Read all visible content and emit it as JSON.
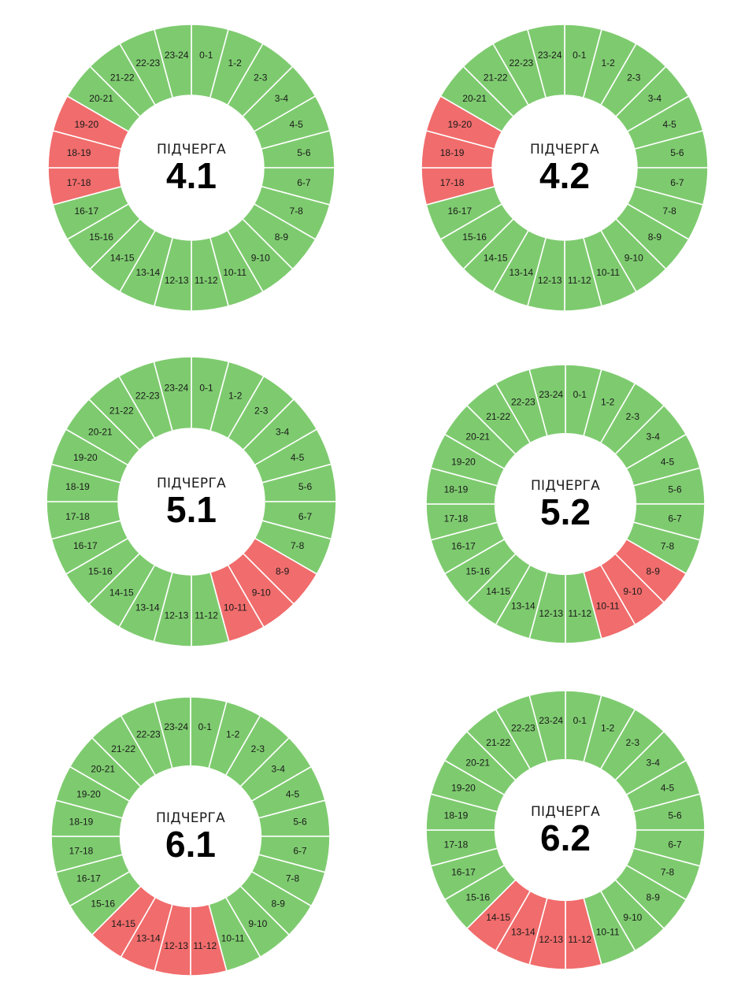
{
  "palette": {
    "on": "#7ecb6f",
    "off": "#f16c6c",
    "separator": "#ffffff"
  },
  "chart_data": [
    {
      "type": "pie",
      "title": "ПІДЧЕРГА",
      "value": "4.1",
      "slots": [
        "0-1",
        "1-2",
        "2-3",
        "3-4",
        "4-5",
        "5-6",
        "6-7",
        "7-8",
        "8-9",
        "9-10",
        "10-11",
        "11-12",
        "12-13",
        "13-14",
        "14-15",
        "15-16",
        "16-17",
        "17-18",
        "18-19",
        "19-20",
        "20-21",
        "21-22",
        "22-23",
        "23-24"
      ],
      "off_slots": [
        "17-18",
        "18-19",
        "19-20"
      ]
    },
    {
      "type": "pie",
      "title": "ПІДЧЕРГА",
      "value": "4.2",
      "slots": [
        "0-1",
        "1-2",
        "2-3",
        "3-4",
        "4-5",
        "5-6",
        "6-7",
        "7-8",
        "8-9",
        "9-10",
        "10-11",
        "11-12",
        "12-13",
        "13-14",
        "14-15",
        "15-16",
        "16-17",
        "17-18",
        "18-19",
        "19-20",
        "20-21",
        "21-22",
        "22-23",
        "23-24"
      ],
      "off_slots": [
        "17-18",
        "18-19",
        "19-20"
      ]
    },
    {
      "type": "pie",
      "title": "ПІДЧЕРГА",
      "value": "5.1",
      "slots": [
        "0-1",
        "1-2",
        "2-3",
        "3-4",
        "4-5",
        "5-6",
        "6-7",
        "7-8",
        "8-9",
        "9-10",
        "10-11",
        "11-12",
        "12-13",
        "13-14",
        "14-15",
        "15-16",
        "16-17",
        "17-18",
        "18-19",
        "19-20",
        "20-21",
        "21-22",
        "22-23",
        "23-24"
      ],
      "off_slots": [
        "8-9",
        "9-10",
        "10-11"
      ]
    },
    {
      "type": "pie",
      "title": "ПІДЧЕРГА",
      "value": "5.2",
      "slots": [
        "0-1",
        "1-2",
        "2-3",
        "3-4",
        "4-5",
        "5-6",
        "6-7",
        "7-8",
        "8-9",
        "9-10",
        "10-11",
        "11-12",
        "12-13",
        "13-14",
        "14-15",
        "15-16",
        "16-17",
        "17-18",
        "18-19",
        "19-20",
        "20-21",
        "21-22",
        "22-23",
        "23-24"
      ],
      "off_slots": [
        "8-9",
        "9-10",
        "10-11"
      ]
    },
    {
      "type": "pie",
      "title": "ПІДЧЕРГА",
      "value": "6.1",
      "slots": [
        "0-1",
        "1-2",
        "2-3",
        "3-4",
        "4-5",
        "5-6",
        "6-7",
        "7-8",
        "8-9",
        "9-10",
        "10-11",
        "11-12",
        "12-13",
        "13-14",
        "14-15",
        "15-16",
        "16-17",
        "17-18",
        "18-19",
        "19-20",
        "20-21",
        "21-22",
        "22-23",
        "23-24"
      ],
      "off_slots": [
        "11-12",
        "12-13",
        "13-14",
        "14-15"
      ]
    },
    {
      "type": "pie",
      "title": "ПІДЧЕРГА",
      "value": "6.2",
      "slots": [
        "0-1",
        "1-2",
        "2-3",
        "3-4",
        "4-5",
        "5-6",
        "6-7",
        "7-8",
        "8-9",
        "9-10",
        "10-11",
        "11-12",
        "12-13",
        "13-14",
        "14-15",
        "15-16",
        "16-17",
        "17-18",
        "18-19",
        "19-20",
        "20-21",
        "21-22",
        "22-23",
        "23-24"
      ],
      "off_slots": [
        "11-12",
        "12-13",
        "13-14",
        "14-15"
      ]
    }
  ]
}
